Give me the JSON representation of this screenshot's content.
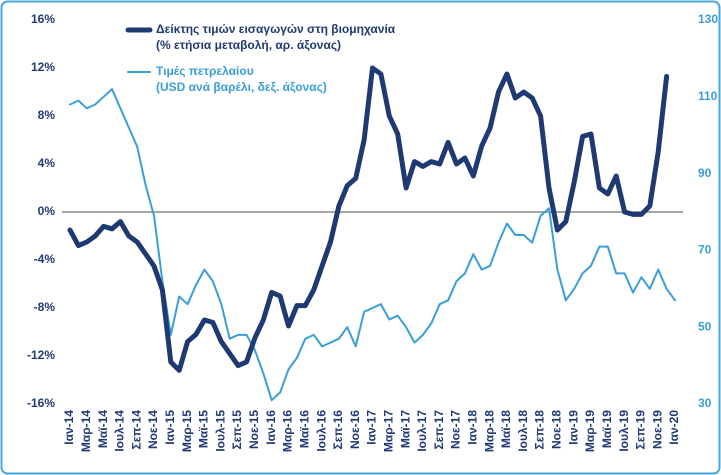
{
  "chart_data": {
    "type": "line",
    "categories": [
      "Ιαν-14",
      null,
      "Μαρ-14",
      null,
      "Μαϊ-14",
      null,
      "Ιουλ-14",
      null,
      "Σεπ-14",
      null,
      "Νοε-14",
      null,
      "Ιαν-15",
      null,
      "Μαρ-15",
      null,
      "Μαϊ-15",
      null,
      "Ιουλ-15",
      null,
      "Σεπ-15",
      null,
      "Νοε-15",
      null,
      "Ιαν-16",
      null,
      "Μαρ-16",
      null,
      "Μαϊ-16",
      null,
      "Ιουλ-16",
      null,
      "Σεπ-16",
      null,
      "Νοε-16",
      null,
      "Ιαν-17",
      null,
      "Μαρ-17",
      null,
      "Μαϊ-17",
      null,
      "Ιουλ-17",
      null,
      "Σεπ-17",
      null,
      "Νοε-17",
      null,
      "Ιαν-18",
      null,
      "Μαρ-18",
      null,
      "Μαϊ-18",
      null,
      "Ιουλ-18",
      null,
      "Σεπ-18",
      null,
      "Νοε-18",
      null,
      "Ιαν-19",
      null,
      "Μαρ-19",
      null,
      "Μαϊ-19",
      null,
      "Ιουλ-19",
      null,
      "Σεπ-19",
      null,
      "Νοε-19",
      null,
      "Ιαν-20"
    ],
    "series": [
      {
        "name": "Δείκτης τιμών εισαγωγών στη βιομηχανία",
        "unit_label": "(% ετήσια μεταβολή, αρ. άξονας)",
        "color": "#1f3a73",
        "width": 5,
        "values": [
          -1.5,
          -2.8,
          -2.5,
          -2.0,
          -1.2,
          -1.4,
          -0.8,
          -2.0,
          -2.5,
          -3.5,
          -4.5,
          -6.5,
          -12.5,
          -13.2,
          -10.8,
          -10.2,
          -9.0,
          -9.2,
          -10.8,
          -11.8,
          -12.8,
          -12.5,
          -10.5,
          -9.0,
          -6.7,
          -7.0,
          -9.5,
          -7.8,
          -7.8,
          -6.5,
          -4.5,
          -2.5,
          0.5,
          2.2,
          2.8,
          6.0,
          12.0,
          11.5,
          8.0,
          6.5,
          2.0,
          4.2,
          3.8,
          4.2,
          4.0,
          5.8,
          4.0,
          4.5,
          3.0,
          5.5,
          7.0,
          10.0,
          11.5,
          9.5,
          10.0,
          9.5,
          8.0,
          2.0,
          -1.5,
          -0.8,
          2.5,
          6.3,
          6.5,
          2.0,
          1.5,
          3.0,
          0.0,
          -0.2,
          -0.2,
          0.5,
          5.0,
          11.3,
          null
        ]
      },
      {
        "name": "Τιμές πετρελαίου",
        "unit_label": "(USD ανά βαρέλι, δεξ. άξονας)",
        "color": "#3a9fd6",
        "width": 2,
        "axis": "y2",
        "values": [
          108,
          109,
          107,
          108,
          110,
          112,
          107,
          102,
          97,
          87,
          79,
          62,
          48,
          58,
          56,
          61,
          65,
          62,
          56,
          47,
          48,
          48,
          44,
          38,
          31,
          33,
          39,
          42,
          47,
          48,
          45,
          46,
          47,
          50,
          45,
          54,
          55,
          56,
          52,
          53,
          50,
          46,
          48,
          51,
          56,
          57,
          62,
          64,
          69,
          65,
          66,
          72,
          77,
          74,
          74,
          72,
          79,
          81,
          65,
          57,
          60,
          64,
          66,
          71,
          71,
          64,
          64,
          59,
          63,
          60,
          65,
          60,
          57
        ]
      }
    ],
    "ylim": [
      -16,
      16
    ],
    "yticks": [
      {
        "value": -16,
        "label": "-16%"
      },
      {
        "value": -12,
        "label": "-12%"
      },
      {
        "value": -8,
        "label": "-8%"
      },
      {
        "value": -4,
        "label": "-4%"
      },
      {
        "value": 0,
        "label": "0%"
      },
      {
        "value": 4,
        "label": "4%"
      },
      {
        "value": 8,
        "label": "8%"
      },
      {
        "value": 12,
        "label": "12%"
      },
      {
        "value": 16,
        "label": "16%"
      }
    ],
    "y2lim": [
      30,
      130
    ],
    "y2ticks": [
      30,
      50,
      70,
      90,
      110,
      130
    ],
    "zero_line": true,
    "legend": "top-left"
  }
}
